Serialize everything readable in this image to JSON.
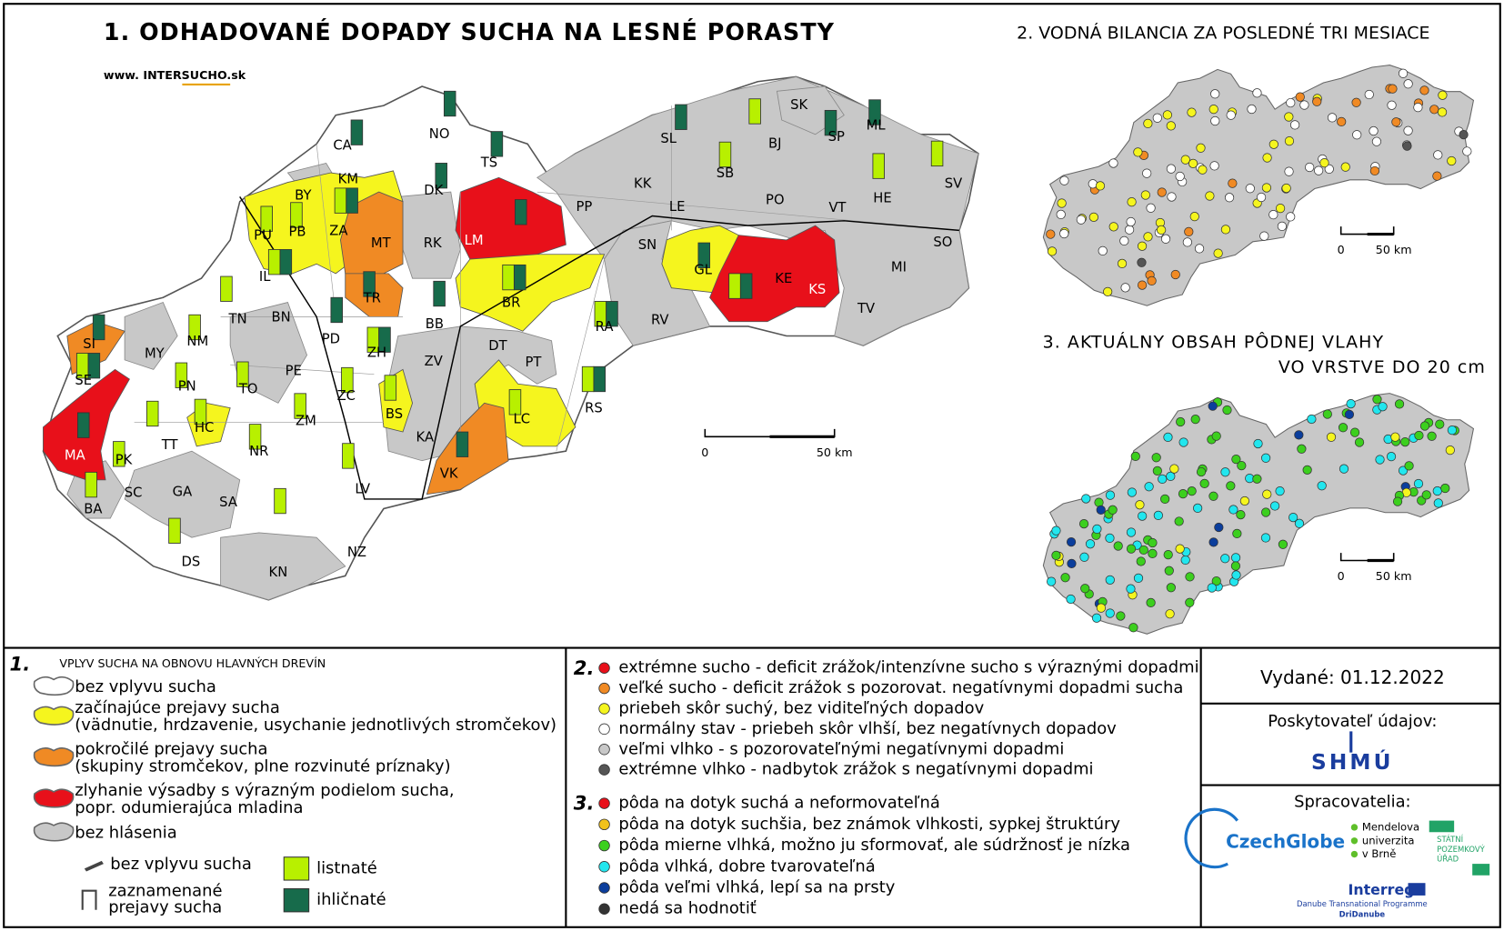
{
  "map1": {
    "title": "1. ODHADOVANÉ DOPADY SUCHA NA LESNÉ PORASTY",
    "website": "www. INTERSUCHO.sk",
    "districts": [
      "CA",
      "NO",
      "TS",
      "SL",
      "BJ",
      "SK",
      "SP",
      "ML",
      "SV",
      "HE",
      "KM",
      "BY",
      "DK",
      "SB",
      "KK",
      "PP",
      "LE",
      "PO",
      "VT",
      "PU",
      "PB",
      "ZA",
      "MT",
      "RK",
      "LM",
      "SN",
      "GL",
      "SO",
      "IL",
      "KE",
      "KS",
      "MI",
      "TR",
      "BB",
      "BR",
      "RA",
      "RV",
      "TV",
      "TN",
      "BN",
      "PD",
      "NM",
      "ZH",
      "DT",
      "SI",
      "MY",
      "PE",
      "ZV",
      "PT",
      "SE",
      "PN",
      "TO",
      "ZC",
      "BS",
      "LC",
      "RS",
      "HC",
      "ZM",
      "TT",
      "NR",
      "KA",
      "MA",
      "PK",
      "VK",
      "LV",
      "GA",
      "SC",
      "SA",
      "BA",
      "DS",
      "NZ",
      "KN"
    ],
    "scale": [
      "0",
      "50 km"
    ]
  },
  "map2": {
    "title": "2. VODNÁ BILANCIA ZA POSLEDNÉ TRI MESIACE",
    "scale": [
      "0",
      "50 km"
    ]
  },
  "map3": {
    "title": [
      "3. AKTUÁLNY OBSAH PÔDNEJ VLAHY",
      "VO VRSTVE DO 20 cm"
    ],
    "scale": [
      "0",
      "50 km"
    ]
  },
  "legend1": {
    "number": "1.",
    "heading": "VPLYV SUCHA NA OBNOVU HLAVNÝCH DREVÍN",
    "items": [
      [
        "bez vplyvu sucha"
      ],
      [
        "začínajúce prejavy sucha",
        "(vädnutie, hrdzavenie, usychanie jednotlivých stromčekov)"
      ],
      [
        "pokročilé prejavy sucha",
        "(skupiny stromčekov, plne rozvinuté príznaky)"
      ],
      [
        "zlyhanie výsadby s výrazným podielom sucha,",
        "popr. odumierajúca mladina"
      ],
      [
        "bez hlásenia"
      ]
    ],
    "symbols": [
      [
        "bez vplyvu sucha"
      ],
      [
        "zaznamenané",
        "prejavy sucha"
      ]
    ],
    "types": [
      "listnaté",
      "ihličnaté"
    ]
  },
  "legend2": {
    "number": "2.",
    "items": [
      "extrémne sucho - deficit zrážok/intenzívne sucho s výraznými dopadmi",
      "veľké sucho - deficit zrážok s pozorovat. negatívnymi dopadmi sucha",
      "priebeh skôr suchý, bez viditeľných dopadov",
      "normálny stav - priebeh skôr vlhší, bez negatívnych dopadov",
      "veľmi vlhko - s pozorovateľnými negatívnymi dopadmi",
      "extrémne vlhko - nadbytok zrážok s negatívnymi dopadmi"
    ]
  },
  "legend3": {
    "number": "3.",
    "items": [
      "pôda na dotyk suchá a neformovateľná",
      "pôda na dotyk suchšia, bez známok vlhkosti, sypkej štruktúry",
      "pôda mierne vlhká, možno ju sformovať, ale súdržnosť je nízka",
      "pôda vlhká, dobre tvarovateľná",
      "pôda veľmi vlhká, lepí sa na prsty",
      "nedá sa hodnotiť"
    ]
  },
  "info": {
    "issued": "Vydané: 01.12.2022",
    "provider": "Poskytovateľ údajov:",
    "provider_logo": "SHMÚ",
    "processors": "Spracovatelia:",
    "czechglobe": "CzechGlobe",
    "mendel": [
      "Mendelova",
      "univerzita",
      "v Brně"
    ],
    "spu": [
      "STÁTNÍ",
      "POZEMKOVÝ",
      "ÚŘAD"
    ],
    "interreg": "Interreg",
    "danube": "Danube Transnational Programme",
    "dridanube": "DriDanube"
  }
}
